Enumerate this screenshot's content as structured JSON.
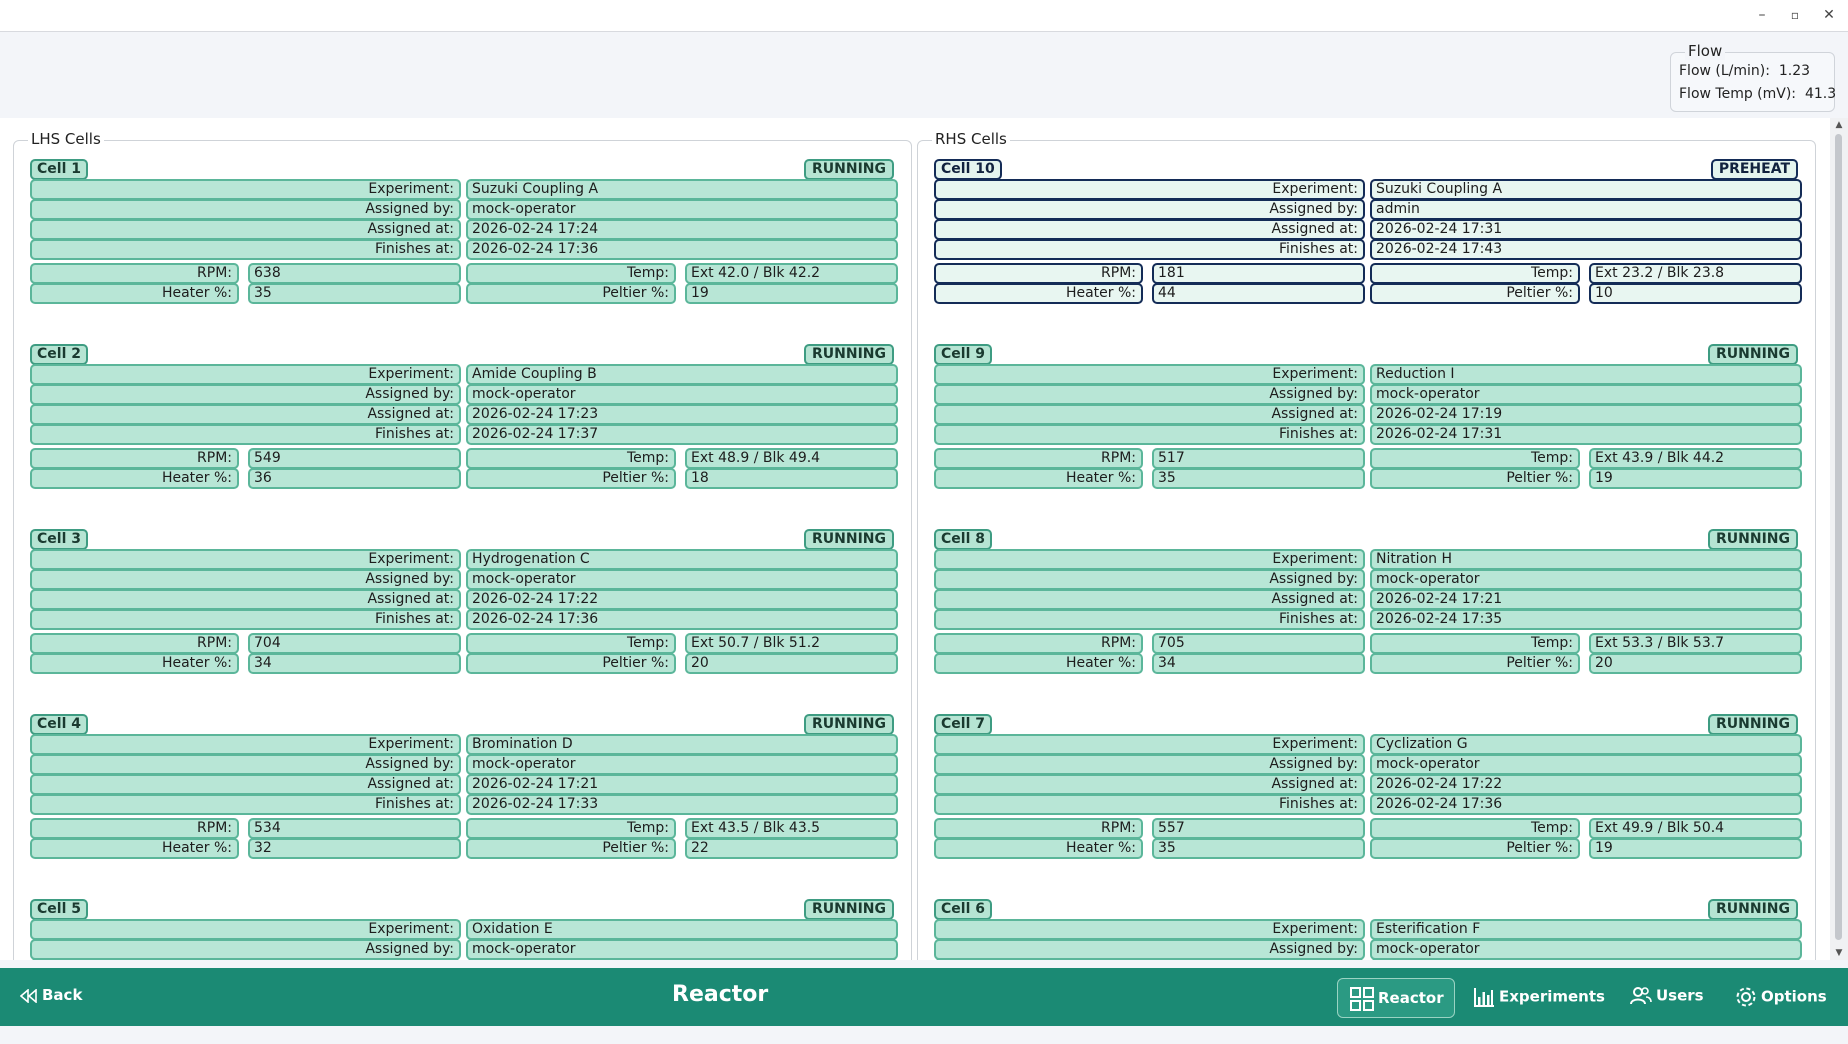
{
  "window": {
    "minimize": "–",
    "maximize": "▫",
    "close": "✕"
  },
  "flow": {
    "title": "Flow",
    "flow_label": "Flow (L/min):",
    "flow_value": "1.23",
    "temp_label": "Flow Temp (mV):",
    "temp_value": "41.3"
  },
  "labels": {
    "experiment": "Experiment:",
    "assigned_by": "Assigned by:",
    "assigned_at": "Assigned at:",
    "finishes_at": "Finishes at:",
    "rpm": "RPM:",
    "temp": "Temp:",
    "heater": "Heater %:",
    "peltier": "Peltier %:"
  },
  "lhs": {
    "title": "LHS Cells",
    "cells": [
      {
        "name": "Cell 1",
        "status": "RUNNING",
        "experiment": "Suzuki Coupling A",
        "assigned_by": "mock-operator",
        "assigned_at": "2026-02-24 17:24",
        "finishes_at": "2026-02-24 17:36",
        "rpm": "638",
        "temp": "Ext 42.0 / Blk 42.2",
        "heater": "35",
        "peltier": "19"
      },
      {
        "name": "Cell 2",
        "status": "RUNNING",
        "experiment": "Amide Coupling B",
        "assigned_by": "mock-operator",
        "assigned_at": "2026-02-24 17:23",
        "finishes_at": "2026-02-24 17:37",
        "rpm": "549",
        "temp": "Ext 48.9 / Blk 49.4",
        "heater": "36",
        "peltier": "18"
      },
      {
        "name": "Cell 3",
        "status": "RUNNING",
        "experiment": "Hydrogenation C",
        "assigned_by": "mock-operator",
        "assigned_at": "2026-02-24 17:22",
        "finishes_at": "2026-02-24 17:36",
        "rpm": "704",
        "temp": "Ext 50.7 / Blk 51.2",
        "heater": "34",
        "peltier": "20"
      },
      {
        "name": "Cell 4",
        "status": "RUNNING",
        "experiment": "Bromination D",
        "assigned_by": "mock-operator",
        "assigned_at": "2026-02-24 17:21",
        "finishes_at": "2026-02-24 17:33",
        "rpm": "534",
        "temp": "Ext 43.5 / Blk 43.5",
        "heater": "32",
        "peltier": "22"
      },
      {
        "name": "Cell 5",
        "status": "RUNNING",
        "experiment": "Oxidation E",
        "assigned_by": "mock-operator",
        "assigned_at": "",
        "finishes_at": "",
        "rpm": "",
        "temp": "",
        "heater": "",
        "peltier": ""
      }
    ]
  },
  "rhs": {
    "title": "RHS Cells",
    "cells": [
      {
        "name": "Cell 10",
        "status": "PREHEAT",
        "experiment": "Suzuki Coupling A",
        "assigned_by": "admin",
        "assigned_at": "2026-02-24 17:31",
        "finishes_at": "2026-02-24 17:43",
        "rpm": "181",
        "temp": "Ext 23.2 / Blk 23.8",
        "heater": "44",
        "peltier": "10"
      },
      {
        "name": "Cell 9",
        "status": "RUNNING",
        "experiment": "Reduction I",
        "assigned_by": "mock-operator",
        "assigned_at": "2026-02-24 17:19",
        "finishes_at": "2026-02-24 17:31",
        "rpm": "517",
        "temp": "Ext 43.9 / Blk 44.2",
        "heater": "35",
        "peltier": "19"
      },
      {
        "name": "Cell 8",
        "status": "RUNNING",
        "experiment": "Nitration H",
        "assigned_by": "mock-operator",
        "assigned_at": "2026-02-24 17:21",
        "finishes_at": "2026-02-24 17:35",
        "rpm": "705",
        "temp": "Ext 53.3 / Blk 53.7",
        "heater": "34",
        "peltier": "20"
      },
      {
        "name": "Cell 7",
        "status": "RUNNING",
        "experiment": "Cyclization G",
        "assigned_by": "mock-operator",
        "assigned_at": "2026-02-24 17:22",
        "finishes_at": "2026-02-24 17:36",
        "rpm": "557",
        "temp": "Ext 49.9 / Blk 50.4",
        "heater": "35",
        "peltier": "19"
      },
      {
        "name": "Cell 6",
        "status": "RUNNING",
        "experiment": "Esterification F",
        "assigned_by": "mock-operator",
        "assigned_at": "",
        "finishes_at": "",
        "rpm": "",
        "temp": "",
        "heater": "",
        "peltier": ""
      }
    ]
  },
  "bottom": {
    "back": "Back",
    "title": "Reactor",
    "nav": {
      "reactor": "Reactor",
      "experiments": "Experiments",
      "users": "Users",
      "options": "Options"
    }
  }
}
